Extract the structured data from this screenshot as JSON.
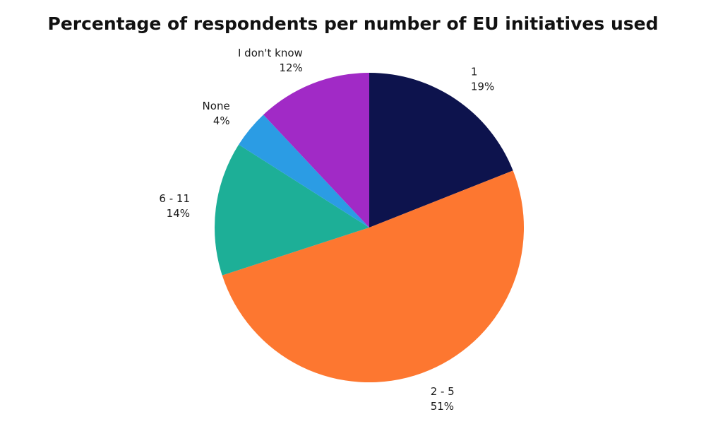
{
  "chart_data": {
    "type": "pie",
    "title": "Percentage of respondents per number of EU initiatives used",
    "slices": [
      {
        "label": "1",
        "value": 19,
        "value_label": "19%",
        "color": "#0d134d"
      },
      {
        "label": "2 - 5",
        "value": 51,
        "value_label": "51%",
        "color": "#fd7730"
      },
      {
        "label": "6 - 11",
        "value": 14,
        "value_label": "14%",
        "color": "#1daf97"
      },
      {
        "label": "None",
        "value": 4,
        "value_label": "4%",
        "color": "#2b9ce4"
      },
      {
        "label": "I don't know",
        "value": 12,
        "value_label": "12%",
        "color": "#a12ac6"
      }
    ],
    "start": "12 o'clock",
    "direction": "clockwise"
  }
}
